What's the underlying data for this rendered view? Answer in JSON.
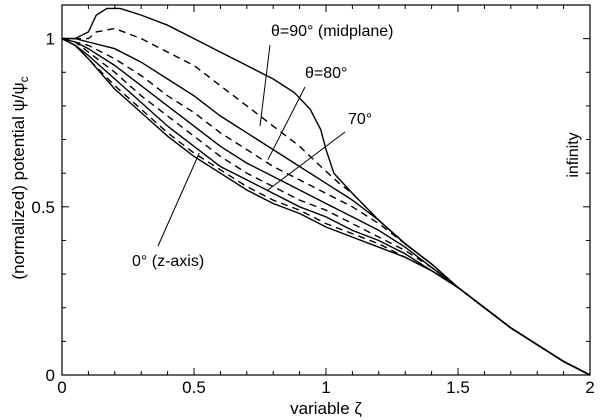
{
  "chart_data": {
    "type": "line",
    "xlabel": "variable ζ",
    "ylabel": "(normalized) potential ψ/ψ",
    "ylabel_sub": "c",
    "xlim": [
      0,
      2
    ],
    "ylim": [
      0,
      1.1
    ],
    "x_ticks": [
      0,
      0.5,
      1,
      1.5,
      2
    ],
    "x_tick_labels": [
      "0",
      "0.5",
      "1",
      "1.5",
      "2"
    ],
    "y_ticks": [
      0,
      0.5,
      1
    ],
    "y_tick_labels": [
      "0",
      "0.5",
      "1"
    ],
    "grid": false,
    "series": [
      {
        "style": "solid",
        "points": [
          [
            0,
            1
          ],
          [
            0.05,
            1.0
          ],
          [
            0.1,
            1.02
          ],
          [
            0.13,
            1.07
          ],
          [
            0.17,
            1.09
          ],
          [
            0.22,
            1.09
          ],
          [
            0.3,
            1.07
          ],
          [
            0.4,
            1.04
          ],
          [
            0.5,
            1.0
          ],
          [
            0.6,
            0.96
          ],
          [
            0.7,
            0.92
          ],
          [
            0.8,
            0.88
          ],
          [
            0.88,
            0.84
          ],
          [
            0.94,
            0.79
          ],
          [
            0.98,
            0.73
          ],
          [
            1.0,
            0.67
          ],
          [
            1.03,
            0.6
          ],
          [
            1.1,
            0.54
          ],
          [
            1.2,
            0.46
          ],
          [
            1.3,
            0.39
          ],
          [
            1.4,
            0.33
          ],
          [
            1.5,
            0.26
          ],
          [
            1.6,
            0.2
          ],
          [
            1.7,
            0.14
          ],
          [
            1.8,
            0.09
          ],
          [
            1.9,
            0.04
          ],
          [
            2.0,
            0
          ]
        ]
      },
      {
        "style": "dashed",
        "points": [
          [
            0,
            1
          ],
          [
            0.05,
            1.0
          ],
          [
            0.1,
            1.0
          ],
          [
            0.13,
            1.02
          ],
          [
            0.2,
            1.03
          ],
          [
            0.3,
            1.0
          ],
          [
            0.4,
            0.96
          ],
          [
            0.5,
            0.92
          ],
          [
            0.6,
            0.86
          ],
          [
            0.7,
            0.8
          ],
          [
            0.8,
            0.74
          ],
          [
            0.9,
            0.68
          ],
          [
            0.98,
            0.62
          ],
          [
            1.05,
            0.57
          ],
          [
            1.1,
            0.54
          ],
          [
            1.2,
            0.46
          ],
          [
            1.3,
            0.39
          ],
          [
            1.4,
            0.33
          ],
          [
            1.5,
            0.26
          ],
          [
            1.6,
            0.2
          ],
          [
            1.7,
            0.14
          ],
          [
            1.8,
            0.09
          ],
          [
            1.9,
            0.04
          ],
          [
            2.0,
            0
          ]
        ]
      },
      {
        "style": "solid",
        "points": [
          [
            0,
            1
          ],
          [
            0.05,
            1.0
          ],
          [
            0.1,
            0.99
          ],
          [
            0.2,
            0.97
          ],
          [
            0.3,
            0.93
          ],
          [
            0.4,
            0.88
          ],
          [
            0.5,
            0.83
          ],
          [
            0.6,
            0.77
          ],
          [
            0.7,
            0.72
          ],
          [
            0.8,
            0.67
          ],
          [
            0.9,
            0.62
          ],
          [
            1.0,
            0.57
          ],
          [
            1.1,
            0.52
          ],
          [
            1.2,
            0.46
          ],
          [
            1.3,
            0.39
          ],
          [
            1.4,
            0.33
          ],
          [
            1.5,
            0.26
          ],
          [
            1.6,
            0.2
          ],
          [
            1.7,
            0.14
          ],
          [
            1.8,
            0.09
          ],
          [
            1.9,
            0.04
          ],
          [
            2.0,
            0
          ]
        ]
      },
      {
        "style": "dashed",
        "points": [
          [
            0,
            1
          ],
          [
            0.05,
            0.99
          ],
          [
            0.1,
            0.98
          ],
          [
            0.2,
            0.94
          ],
          [
            0.3,
            0.89
          ],
          [
            0.4,
            0.83
          ],
          [
            0.5,
            0.78
          ],
          [
            0.6,
            0.72
          ],
          [
            0.7,
            0.67
          ],
          [
            0.8,
            0.62
          ],
          [
            0.9,
            0.58
          ],
          [
            1.0,
            0.54
          ],
          [
            1.1,
            0.5
          ],
          [
            1.2,
            0.45
          ],
          [
            1.3,
            0.39
          ],
          [
            1.4,
            0.33
          ],
          [
            1.5,
            0.26
          ],
          [
            1.6,
            0.2
          ],
          [
            1.7,
            0.14
          ],
          [
            1.8,
            0.09
          ],
          [
            1.9,
            0.04
          ],
          [
            2.0,
            0
          ]
        ]
      },
      {
        "style": "solid",
        "points": [
          [
            0,
            1
          ],
          [
            0.05,
            0.99
          ],
          [
            0.1,
            0.97
          ],
          [
            0.2,
            0.92
          ],
          [
            0.3,
            0.86
          ],
          [
            0.4,
            0.8
          ],
          [
            0.5,
            0.74
          ],
          [
            0.6,
            0.68
          ],
          [
            0.7,
            0.63
          ],
          [
            0.8,
            0.59
          ],
          [
            0.9,
            0.55
          ],
          [
            1.0,
            0.51
          ],
          [
            1.1,
            0.47
          ],
          [
            1.2,
            0.43
          ],
          [
            1.3,
            0.38
          ],
          [
            1.4,
            0.32
          ],
          [
            1.5,
            0.26
          ],
          [
            1.6,
            0.2
          ],
          [
            1.7,
            0.14
          ],
          [
            1.8,
            0.09
          ],
          [
            1.9,
            0.04
          ],
          [
            2.0,
            0
          ]
        ]
      },
      {
        "style": "dashed",
        "points": [
          [
            0,
            1
          ],
          [
            0.05,
            0.99
          ],
          [
            0.1,
            0.96
          ],
          [
            0.2,
            0.9
          ],
          [
            0.3,
            0.83
          ],
          [
            0.4,
            0.77
          ],
          [
            0.5,
            0.71
          ],
          [
            0.6,
            0.65
          ],
          [
            0.7,
            0.6
          ],
          [
            0.8,
            0.56
          ],
          [
            0.9,
            0.52
          ],
          [
            1.0,
            0.49
          ],
          [
            1.1,
            0.45
          ],
          [
            1.2,
            0.41
          ],
          [
            1.3,
            0.37
          ],
          [
            1.4,
            0.32
          ],
          [
            1.5,
            0.26
          ],
          [
            1.6,
            0.2
          ],
          [
            1.7,
            0.14
          ],
          [
            1.8,
            0.09
          ],
          [
            1.9,
            0.04
          ],
          [
            2.0,
            0
          ]
        ]
      },
      {
        "style": "solid",
        "points": [
          [
            0,
            1
          ],
          [
            0.05,
            0.98
          ],
          [
            0.1,
            0.95
          ],
          [
            0.2,
            0.88
          ],
          [
            0.3,
            0.81
          ],
          [
            0.4,
            0.74
          ],
          [
            0.5,
            0.68
          ],
          [
            0.6,
            0.62
          ],
          [
            0.7,
            0.58
          ],
          [
            0.8,
            0.54
          ],
          [
            0.9,
            0.5
          ],
          [
            1.0,
            0.47
          ],
          [
            1.1,
            0.43
          ],
          [
            1.2,
            0.4
          ],
          [
            1.3,
            0.36
          ],
          [
            1.4,
            0.31
          ],
          [
            1.5,
            0.26
          ],
          [
            1.6,
            0.2
          ],
          [
            1.7,
            0.14
          ],
          [
            1.8,
            0.09
          ],
          [
            1.9,
            0.04
          ],
          [
            2.0,
            0
          ]
        ]
      },
      {
        "style": "dashed",
        "points": [
          [
            0,
            1
          ],
          [
            0.05,
            0.98
          ],
          [
            0.1,
            0.94
          ],
          [
            0.2,
            0.86
          ],
          [
            0.3,
            0.79
          ],
          [
            0.4,
            0.72
          ],
          [
            0.5,
            0.66
          ],
          [
            0.6,
            0.61
          ],
          [
            0.7,
            0.56
          ],
          [
            0.8,
            0.52
          ],
          [
            0.9,
            0.49
          ],
          [
            1.0,
            0.45
          ],
          [
            1.1,
            0.42
          ],
          [
            1.2,
            0.39
          ],
          [
            1.3,
            0.35
          ],
          [
            1.4,
            0.31
          ],
          [
            1.5,
            0.26
          ],
          [
            1.6,
            0.2
          ],
          [
            1.7,
            0.14
          ],
          [
            1.8,
            0.09
          ],
          [
            1.9,
            0.04
          ],
          [
            2.0,
            0
          ]
        ]
      },
      {
        "style": "solid",
        "points": [
          [
            0,
            1
          ],
          [
            0.05,
            0.98
          ],
          [
            0.1,
            0.94
          ],
          [
            0.2,
            0.85
          ],
          [
            0.3,
            0.78
          ],
          [
            0.4,
            0.71
          ],
          [
            0.5,
            0.65
          ],
          [
            0.6,
            0.6
          ],
          [
            0.7,
            0.55
          ],
          [
            0.8,
            0.51
          ],
          [
            0.9,
            0.48
          ],
          [
            1.0,
            0.44
          ],
          [
            1.1,
            0.41
          ],
          [
            1.2,
            0.38
          ],
          [
            1.3,
            0.35
          ],
          [
            1.4,
            0.31
          ],
          [
            1.5,
            0.26
          ],
          [
            1.6,
            0.2
          ],
          [
            1.7,
            0.14
          ],
          [
            1.8,
            0.09
          ],
          [
            1.9,
            0.04
          ],
          [
            2.0,
            0
          ]
        ]
      }
    ],
    "annotations": [
      {
        "text": "θ=90° (midplane)",
        "target": [
          0.75,
          0.74
        ]
      },
      {
        "text": "θ=80°",
        "target": [
          0.78,
          0.64
        ]
      },
      {
        "text": "70°",
        "target": [
          0.78,
          0.55
        ]
      },
      {
        "text": "0° (z-axis)",
        "target": [
          0.52,
          0.66
        ]
      },
      {
        "text": "infinity"
      }
    ]
  }
}
